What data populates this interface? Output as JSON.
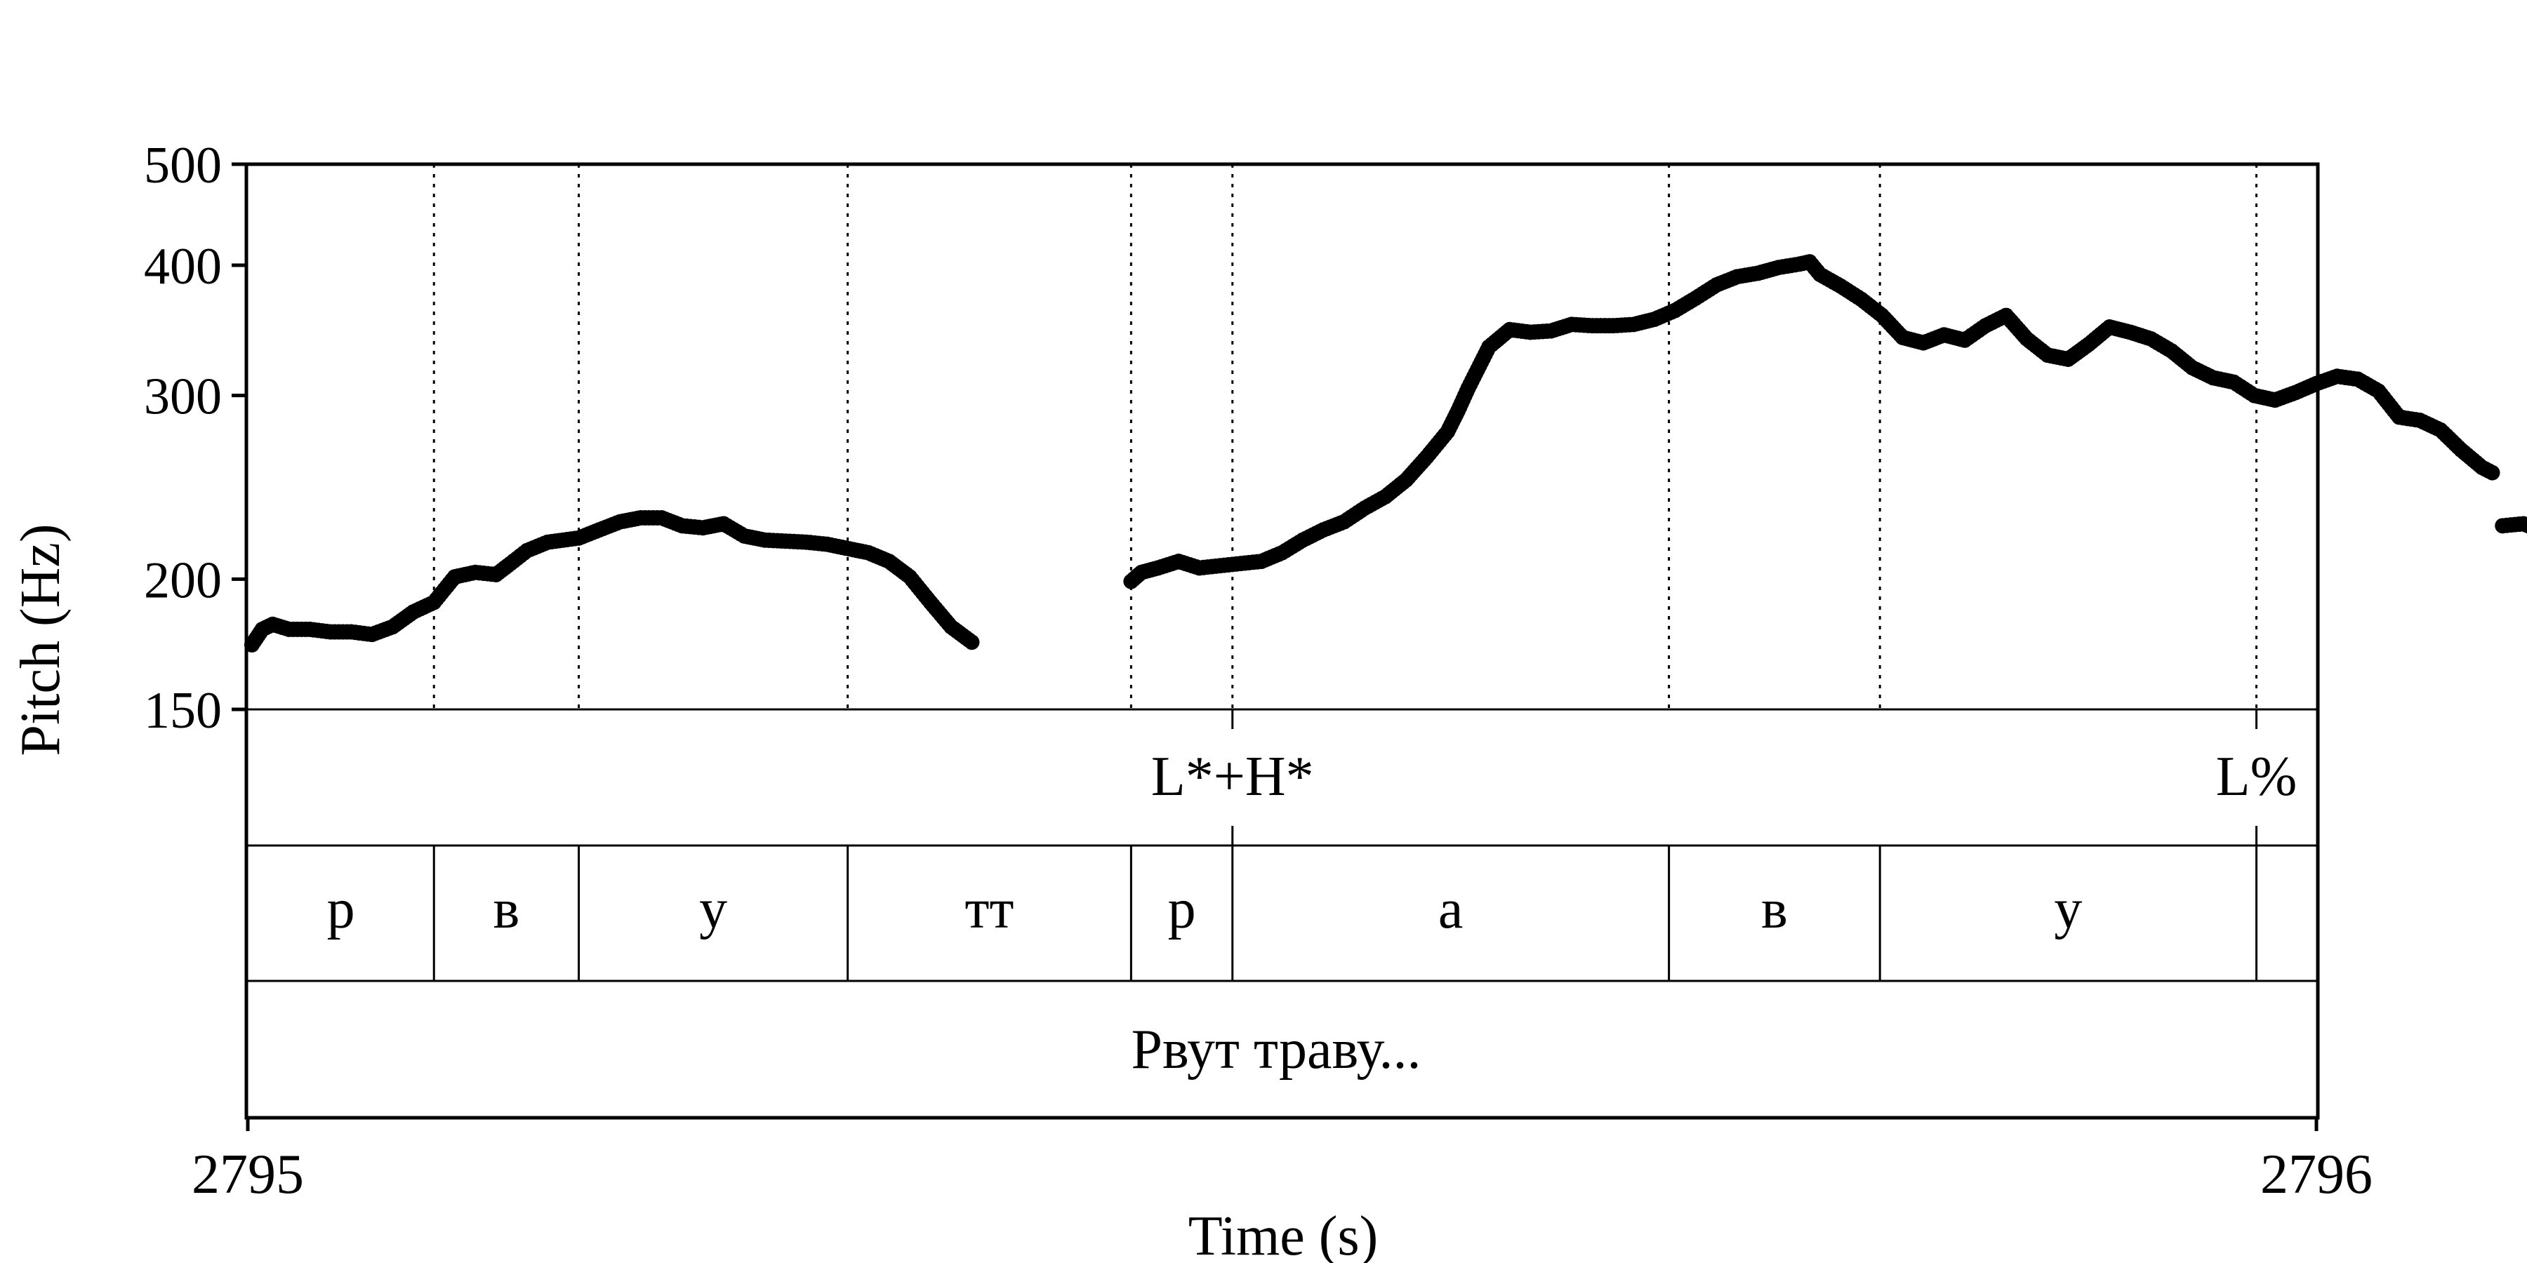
{
  "chart_data": {
    "type": "line",
    "title": "",
    "xlabel": "Time (s)",
    "ylabel": "Pitch (Hz)",
    "xlim": [
      2795,
      2796
    ],
    "ylim": [
      150,
      500
    ],
    "yscale": "log",
    "x_ticks": [
      "2795",
      "2796"
    ],
    "y_ticks": [
      150,
      200,
      300,
      400,
      500
    ],
    "y_tick_labels": [
      "150",
      "200",
      "300",
      "400",
      "500"
    ],
    "line_color": "#000000",
    "series": [
      {
        "name": "",
        "points": [
          [
            2795.002,
            173
          ],
          [
            2795.007,
            179
          ],
          [
            2795.012,
            181
          ],
          [
            2795.02,
            179
          ],
          [
            2795.03,
            179
          ],
          [
            2795.04,
            178
          ],
          [
            2795.05,
            178
          ],
          [
            2795.06,
            177
          ],
          [
            2795.07,
            180
          ],
          [
            2795.08,
            186
          ],
          [
            2795.09,
            190
          ],
          [
            2795.1,
            201
          ],
          [
            2795.11,
            203
          ],
          [
            2795.12,
            202
          ],
          [
            2795.127,
            207
          ],
          [
            2795.135,
            213
          ],
          [
            2795.145,
            217
          ],
          [
            2795.16,
            219
          ],
          [
            2795.17,
            223
          ],
          [
            2795.18,
            227
          ],
          [
            2795.19,
            229
          ],
          [
            2795.2,
            229
          ],
          [
            2795.21,
            225
          ],
          [
            2795.22,
            224
          ],
          [
            2795.23,
            226
          ],
          [
            2795.24,
            220
          ],
          [
            2795.25,
            218
          ],
          [
            2795.27,
            217
          ],
          [
            2795.28,
            216
          ],
          [
            2795.3,
            212
          ],
          [
            2795.31,
            208
          ],
          [
            2795.32,
            201
          ],
          [
            2795.33,
            190
          ],
          [
            2795.34,
            180
          ],
          [
            2795.35,
            174
          ],
          null,
          [
            2795.427,
            199
          ],
          [
            2795.432,
            203
          ],
          [
            2795.44,
            205
          ],
          [
            2795.45,
            208
          ],
          [
            2795.46,
            205
          ],
          [
            2795.47,
            206
          ],
          [
            2795.48,
            207
          ],
          [
            2795.49,
            208
          ],
          [
            2795.5,
            212
          ],
          [
            2795.51,
            218
          ],
          [
            2795.52,
            223
          ],
          [
            2795.53,
            227
          ],
          [
            2795.54,
            234
          ],
          [
            2795.55,
            240
          ],
          [
            2795.56,
            249
          ],
          [
            2795.57,
            262
          ],
          [
            2795.58,
            277
          ],
          [
            2795.585,
            290
          ],
          [
            2795.59,
            305
          ],
          [
            2795.6,
            334
          ],
          [
            2795.61,
            347
          ],
          [
            2795.62,
            345
          ],
          [
            2795.63,
            346
          ],
          [
            2795.64,
            351
          ],
          [
            2795.65,
            350
          ],
          [
            2795.66,
            350
          ],
          [
            2795.67,
            351
          ],
          [
            2795.68,
            355
          ],
          [
            2795.69,
            362
          ],
          [
            2795.7,
            372
          ],
          [
            2795.71,
            383
          ],
          [
            2795.72,
            390
          ],
          [
            2795.73,
            393
          ],
          [
            2795.74,
            398
          ],
          [
            2795.75,
            401
          ],
          [
            2795.755,
            403
          ],
          [
            2795.76,
            392
          ],
          [
            2795.77,
            382
          ],
          [
            2795.78,
            371
          ],
          [
            2795.79,
            358
          ],
          [
            2795.8,
            341
          ],
          [
            2795.81,
            337
          ],
          [
            2795.82,
            343
          ],
          [
            2795.83,
            339
          ],
          [
            2795.84,
            350
          ],
          [
            2795.85,
            358
          ],
          [
            2795.86,
            340
          ],
          [
            2795.87,
            328
          ],
          [
            2795.88,
            325
          ],
          [
            2795.89,
            336
          ],
          [
            2795.9,
            349
          ],
          [
            2795.91,
            345
          ],
          [
            2795.92,
            340
          ],
          [
            2795.93,
            331
          ],
          [
            2795.94,
            319
          ],
          [
            2795.95,
            312
          ],
          [
            2795.96,
            309
          ],
          [
            2795.97,
            300
          ],
          [
            2795.98,
            297
          ],
          [
            2795.99,
            302
          ],
          [
            2796.0,
            308
          ],
          [
            2796.01,
            313
          ],
          [
            2796.02,
            311
          ],
          [
            2796.03,
            303
          ],
          [
            2796.04,
            286
          ],
          [
            2796.05,
            284
          ],
          [
            2796.06,
            278
          ],
          [
            2796.07,
            266
          ],
          [
            2796.08,
            256
          ],
          [
            2796.085,
            253
          ],
          null,
          [
            2796.09,
            225
          ],
          [
            2796.1,
            226
          ],
          [
            2796.11,
            222
          ],
          [
            2796.12,
            220
          ],
          [
            2796.13,
            216
          ],
          [
            2796.14,
            212
          ],
          [
            2796.15,
            209
          ]
        ]
      }
    ],
    "vertical_boundaries_dotted": [
      2795.09,
      2795.16,
      2795.29,
      2795.427,
      2795.476,
      2795.687,
      2795.789,
      2795.971
    ],
    "tiers": [
      {
        "name": "tones",
        "points": [
          {
            "time": 2795.476,
            "label": "L*+H*"
          },
          {
            "time": 2795.971,
            "label": "L%"
          }
        ]
      },
      {
        "name": "segments",
        "boundaries": [
          2795.09,
          2795.16,
          2795.29,
          2795.427,
          2795.476,
          2795.687,
          2795.789,
          2795.971
        ],
        "intervals": [
          {
            "label": "р"
          },
          {
            "label": "в"
          },
          {
            "label": "у"
          },
          {
            "label": "тт"
          },
          {
            "label": "р"
          },
          {
            "label": "а"
          },
          {
            "label": "в"
          },
          {
            "label": "у"
          },
          {
            "label": ""
          }
        ]
      },
      {
        "name": "words",
        "intervals": [
          {
            "label": "Рвут траву..."
          }
        ]
      }
    ]
  }
}
